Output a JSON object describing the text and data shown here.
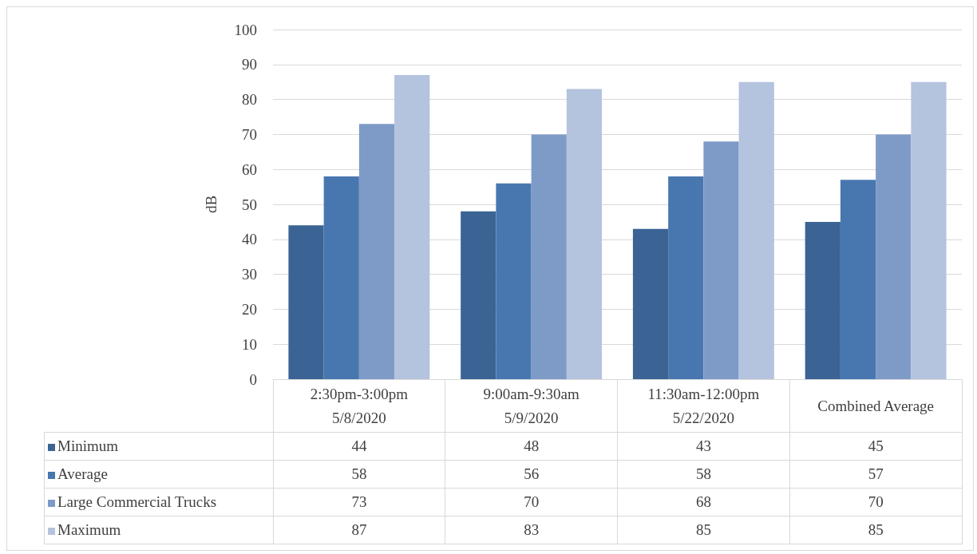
{
  "chart_data": {
    "type": "bar",
    "ylabel": "dB",
    "categories": [
      "2:30pm-3:00pm\n5/8/2020",
      "9:00am-9:30am\n5/9/2020",
      "11:30am-12:00pm\n5/22/2020",
      "Combined Average"
    ],
    "series": [
      {
        "name": "Minimum",
        "color": "#3b6495",
        "values": [
          44,
          48,
          43,
          45
        ]
      },
      {
        "name": "Average",
        "color": "#4877b0",
        "values": [
          58,
          56,
          58,
          57
        ]
      },
      {
        "name": "Large Commercial Trucks",
        "color": "#7e9bc8",
        "values": [
          73,
          70,
          68,
          70
        ]
      },
      {
        "name": "Maximum",
        "color": "#b4c3de",
        "values": [
          87,
          83,
          85,
          85
        ]
      }
    ],
    "ylim": [
      0,
      100
    ],
    "yticks": [
      0,
      10,
      20,
      30,
      40,
      50,
      60,
      70,
      80,
      90,
      100
    ],
    "grid": "y",
    "legend": "bottom",
    "data_labels": true
  }
}
